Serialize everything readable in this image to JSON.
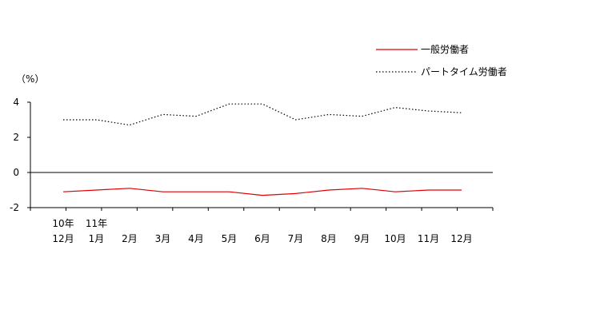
{
  "chart_data": {
    "type": "line",
    "ylabel": "（%）",
    "ylim": [
      -2,
      4
    ],
    "yticks": [
      4,
      2,
      0,
      -2
    ],
    "zero_line": true,
    "grid": false,
    "legend_position": "top-right",
    "categories": [
      {
        "year": "10年",
        "month": "12月"
      },
      {
        "year": "11年",
        "month": "1月"
      },
      {
        "year": "",
        "month": "2月"
      },
      {
        "year": "",
        "month": "3月"
      },
      {
        "year": "",
        "month": "4月"
      },
      {
        "year": "",
        "month": "5月"
      },
      {
        "year": "",
        "month": "6月"
      },
      {
        "year": "",
        "month": "7月"
      },
      {
        "year": "",
        "month": "8月"
      },
      {
        "year": "",
        "month": "9月"
      },
      {
        "year": "",
        "month": "10月"
      },
      {
        "year": "",
        "month": "11月"
      },
      {
        "year": "",
        "month": "12月"
      }
    ],
    "series": [
      {
        "name": "一般労働者",
        "color": "#e00000",
        "style": "solid",
        "values": [
          -1.1,
          -1.0,
          -0.9,
          -1.1,
          -1.1,
          -1.1,
          -1.3,
          -1.2,
          -1.0,
          -0.9,
          -1.1,
          -1.0,
          -1.0
        ]
      },
      {
        "name": "パートタイム労働者",
        "color": "#000000",
        "style": "dotted",
        "values": [
          3.0,
          3.0,
          2.7,
          3.3,
          3.2,
          3.9,
          3.9,
          3.0,
          3.3,
          3.2,
          3.7,
          3.5,
          3.4
        ]
      }
    ]
  }
}
